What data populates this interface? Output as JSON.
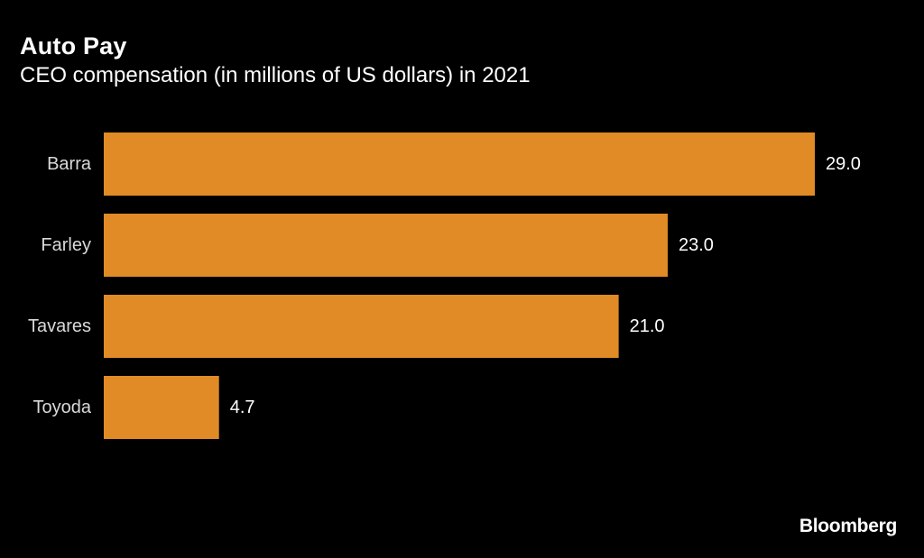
{
  "chart_data": {
    "type": "bar",
    "orientation": "horizontal",
    "title": "Auto Pay",
    "subtitle": "CEO compensation (in millions of US dollars) in 2021",
    "categories": [
      "Barra",
      "Farley",
      "Tavares",
      "Toyoda"
    ],
    "values": [
      29.0,
      23.0,
      21.0,
      4.7
    ],
    "value_labels": [
      "29.0",
      "23.0",
      "21.0",
      "4.7"
    ],
    "xlabel": "",
    "ylabel": "",
    "xlim": [
      0,
      29
    ],
    "grid": false,
    "bar_color": "#e08b26",
    "background": "#000000"
  },
  "source": {
    "label": "Bloomberg"
  }
}
